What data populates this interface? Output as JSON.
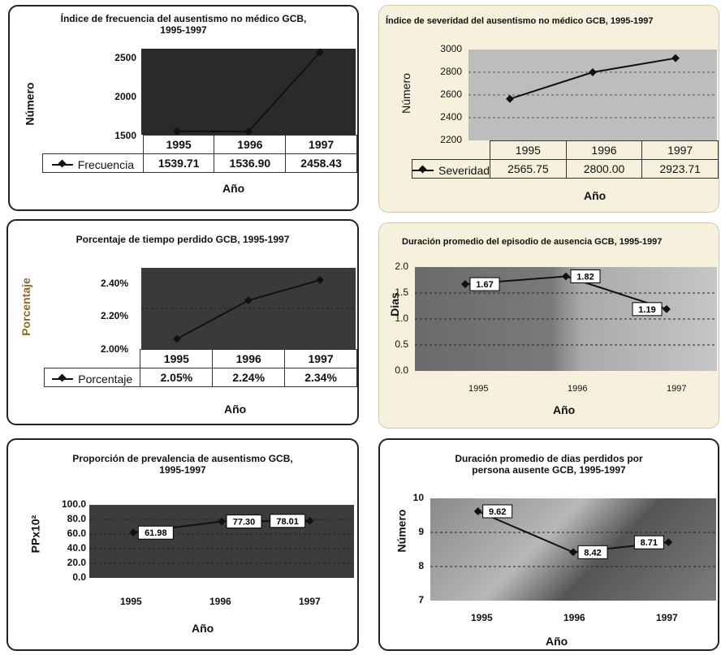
{
  "chart_data": [
    {
      "type": "line",
      "title": "Índice de frecuencia del ausentismo no médico GCB, 1995-1997",
      "ylabel": "Número",
      "xlabel": "Año",
      "categories": [
        "1995",
        "1996",
        "1997"
      ],
      "series": [
        {
          "name": "Frecuencia",
          "values": [
            1539.71,
            1536.9,
            2458.43
          ]
        }
      ],
      "table_values": [
        "1539.71",
        "1536.90",
        "2458.43"
      ],
      "ylim": [
        1500,
        2500
      ],
      "yticks": [
        "2500",
        "2000",
        "1500"
      ],
      "grid": false
    },
    {
      "type": "line",
      "title": "Índice de severidad del ausentismo no médico GCB, 1995-1997",
      "ylabel": "Número",
      "xlabel": "Año",
      "categories": [
        "1995",
        "1996",
        "1997"
      ],
      "series": [
        {
          "name": "Severidad",
          "values": [
            2565.75,
            2800.0,
            2923.71
          ]
        }
      ],
      "table_values": [
        "2565.75",
        "2800.00",
        "2923.71"
      ],
      "ylim": [
        2200,
        3000
      ],
      "yticks": [
        "3000",
        "2800",
        "2600",
        "2400",
        "2200"
      ],
      "grid": true
    },
    {
      "type": "line",
      "title": "Porcentaje de tiempo perdido GCB, 1995-1997",
      "ylabel": "Porcentaje",
      "xlabel": "Año",
      "categories": [
        "1995",
        "1996",
        "1997"
      ],
      "series": [
        {
          "name": "Porcentaje",
          "values": [
            2.05,
            2.24,
            2.34
          ]
        }
      ],
      "table_values": [
        "2.05%",
        "2.24%",
        "2.34%"
      ],
      "ylim": [
        2.0,
        2.4
      ],
      "yticks": [
        "2.40%",
        "2.20%",
        "2.00%"
      ],
      "grid": true
    },
    {
      "type": "line",
      "title": "Duración promedio del episodio de ausencia GCB, 1995-1997",
      "ylabel": "Dias",
      "xlabel": "Año",
      "categories": [
        "1995",
        "1996",
        "1997"
      ],
      "series": [
        {
          "name": "",
          "values": [
            1.67,
            1.82,
            1.19
          ]
        }
      ],
      "data_labels": [
        "1.67",
        "1.82",
        "1.19"
      ],
      "ylim": [
        0,
        2.0
      ],
      "yticks": [
        "2.0",
        "1.5",
        "1.0",
        "0.5",
        "0.0"
      ],
      "grid": true
    },
    {
      "type": "line",
      "title": "Proporción de prevalencia de ausentismo GCB, 1995-1997",
      "ylabel": "PPx10²",
      "xlabel": "Año",
      "categories": [
        "1995",
        "1996",
        "1997"
      ],
      "series": [
        {
          "name": "",
          "values": [
            61.98,
            77.3,
            78.01
          ]
        }
      ],
      "data_labels": [
        "61.98",
        "77.30",
        "78.01"
      ],
      "ylim": [
        0,
        100
      ],
      "yticks": [
        "100.0",
        "80.0",
        "60.0",
        "40.0",
        "20.0",
        "0.0"
      ],
      "grid": true
    },
    {
      "type": "line",
      "title": "Duración promedio de dias perdidos por persona ausente GCB, 1995-1997",
      "ylabel": "Número",
      "xlabel": "Año",
      "categories": [
        "1995",
        "1996",
        "1997"
      ],
      "series": [
        {
          "name": "",
          "values": [
            9.62,
            8.42,
            8.71
          ]
        }
      ],
      "data_labels": [
        "9.62",
        "8.42",
        "8.71"
      ],
      "ylim": [
        7,
        10
      ],
      "yticks": [
        "10",
        "9",
        "8",
        "7"
      ],
      "grid": true
    }
  ],
  "titles": {
    "c1_line1": "Índice de frecuencia del ausentismo no médico GCB,",
    "c1_line2": "1995-1997",
    "c2": "Índice de severidad del ausentismo no médico GCB, 1995-1997",
    "c3": "Porcentaje de tiempo perdido GCB, 1995-1997",
    "c4": "Duración promedio del episodio de ausencia GCB, 1995-1997",
    "c5_line1": "Proporción de prevalencia de ausentismo GCB,",
    "c5_line2": "1995-1997",
    "c6_line1": "Duración promedio de dias perdidos por",
    "c6_line2": "persona ausente GCB, 1995-1997"
  },
  "colors": {
    "dark_plot": "#2a2a2a",
    "mid_plot": "#8e8e8e",
    "beige_panel": "#f6f1dc",
    "line": "#111111"
  }
}
